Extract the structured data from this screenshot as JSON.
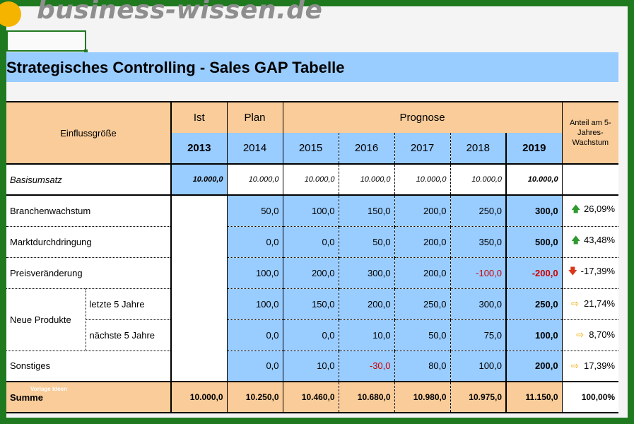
{
  "site": {
    "logo_text": "business-wissen.de"
  },
  "title": "Strategisches Controlling - Sales GAP Tabelle",
  "header": {
    "einfluss": "Einflussgröße",
    "ist": "Ist",
    "plan": "Plan",
    "prognose": "Prognose",
    "anteil": "Anteil am 5-Jahres-Wachstum",
    "years": [
      "2013",
      "2014",
      "2015",
      "2016",
      "2017",
      "2018",
      "2019"
    ]
  },
  "basis": {
    "label": "Basisumsatz",
    "values": [
      "10.000,0",
      "10.000,0",
      "10.000,0",
      "10.000,0",
      "10.000,0",
      "10.000,0",
      "10.000,0"
    ]
  },
  "rows": [
    {
      "label": "Branchenwachstum",
      "values": [
        "50,0",
        "100,0",
        "150,0",
        "200,0",
        "250,0"
      ],
      "total": "300,0",
      "trend": "up",
      "share": "26,09%"
    },
    {
      "label": "Marktdurchdringung",
      "values": [
        "0,0",
        "0,0",
        "50,0",
        "200,0",
        "350,0"
      ],
      "total": "500,0",
      "trend": "up",
      "share": "43,48%"
    },
    {
      "label": "Preisveränderung",
      "values": [
        "100,0",
        "200,0",
        "300,0",
        "200,0",
        "-100,0"
      ],
      "total": "-200,0",
      "trend": "down",
      "share": "-17,39%"
    },
    {
      "label": "Neue Produkte",
      "sublabel": "letzte 5 Jahre",
      "values": [
        "100,0",
        "150,0",
        "200,0",
        "250,0",
        "300,0"
      ],
      "total": "250,0",
      "trend": "right",
      "share": "21,74%"
    },
    {
      "sublabel": "nächste 5 Jahre",
      "values": [
        "0,0",
        "0,0",
        "10,0",
        "50,0",
        "75,0"
      ],
      "total": "100,0",
      "trend": "right",
      "share": "8,70%"
    },
    {
      "label": "Sonstiges",
      "values": [
        "0,0",
        "10,0",
        "-30,0",
        "80,0",
        "100,0"
      ],
      "total": "200,0",
      "trend": "right",
      "share": "17,39%"
    }
  ],
  "summe": {
    "label": "Summe",
    "watermark": "Vorlage Ideen",
    "values": [
      "10.000,0",
      "10.250,0",
      "10.460,0",
      "10.680,0",
      "10.980,0",
      "10.975,0",
      "11.150,0"
    ],
    "share": "100,00%"
  },
  "colors": {
    "frame": "#1f7a1f",
    "header": "#f9cc99",
    "blue": "#99ccff",
    "negative": "#cc0000",
    "up": "#2e9a2e",
    "down": "#d9381e",
    "right": "#f0a800"
  }
}
